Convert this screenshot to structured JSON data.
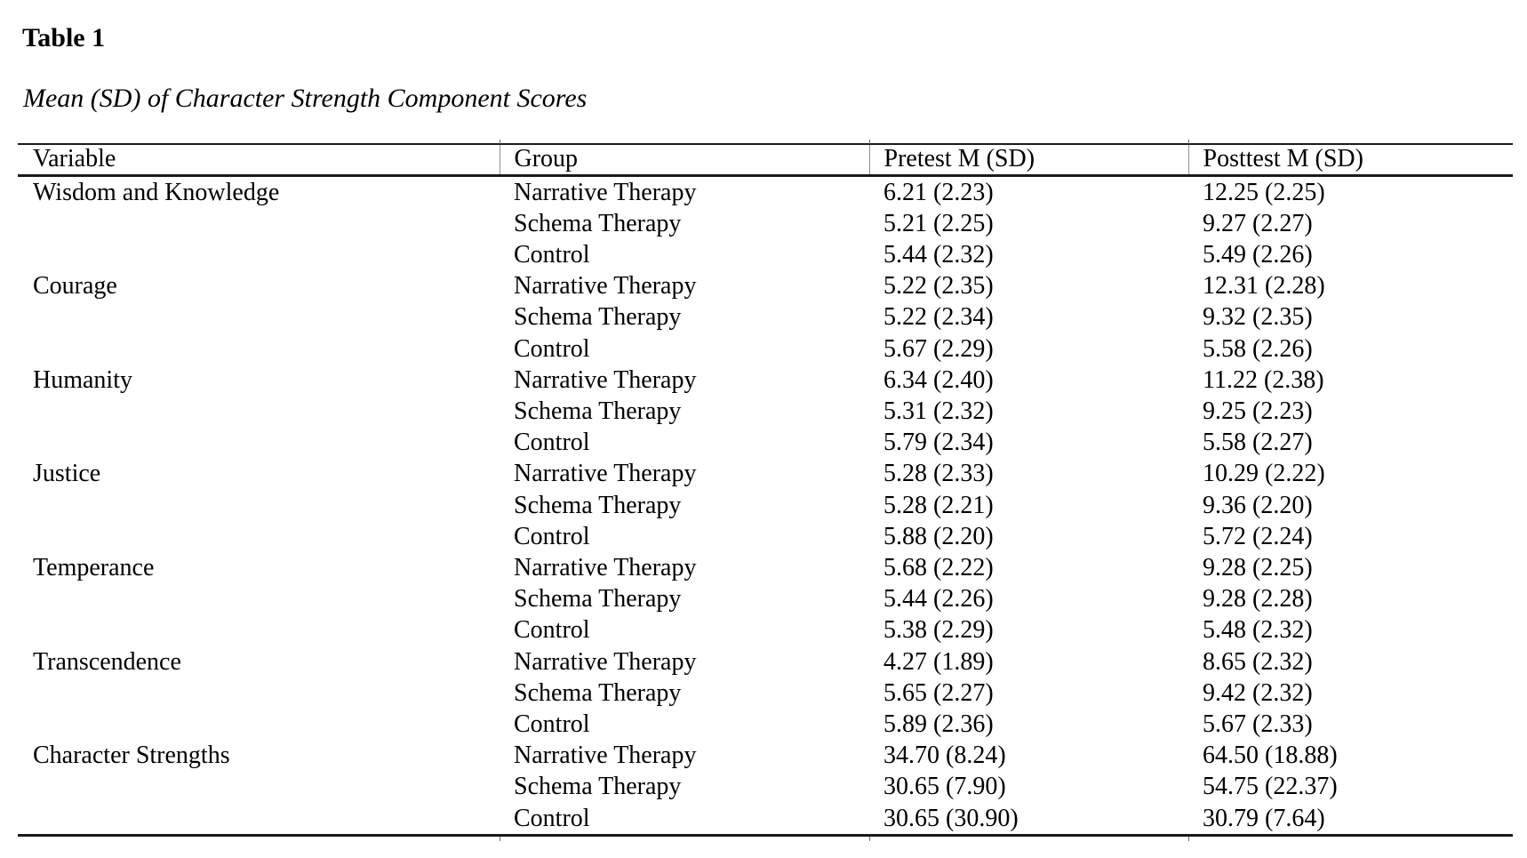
{
  "page": {
    "title": "Table 1",
    "caption": "Mean (SD) of Character Strength Component Scores"
  },
  "colors": {
    "background": "#ffffff",
    "text": "#000000",
    "rule": "#1a1a1a"
  },
  "chart_data": {
    "type": "table",
    "columns": [
      "Variable",
      "Group",
      "Pretest M (SD)",
      "Posttest M (SD)"
    ],
    "col_keys": [
      "variable",
      "group",
      "pretest",
      "posttest"
    ],
    "rows": [
      [
        "Wisdom and Knowledge",
        "Narrative Therapy",
        "6.21 (2.23)",
        "12.25 (2.25)"
      ],
      [
        "",
        "Schema Therapy",
        "5.21 (2.25)",
        "9.27 (2.27)"
      ],
      [
        "",
        "Control",
        "5.44 (2.32)",
        "5.49 (2.26)"
      ],
      [
        "Courage",
        "Narrative Therapy",
        "5.22 (2.35)",
        "12.31 (2.28)"
      ],
      [
        "",
        "Schema Therapy",
        "5.22 (2.34)",
        "9.32 (2.35)"
      ],
      [
        "",
        "Control",
        "5.67 (2.29)",
        "5.58 (2.26)"
      ],
      [
        "Humanity",
        "Narrative Therapy",
        "6.34 (2.40)",
        "11.22 (2.38)"
      ],
      [
        "",
        "Schema Therapy",
        "5.31 (2.32)",
        "9.25 (2.23)"
      ],
      [
        "",
        "Control",
        "5.79 (2.34)",
        "5.58 (2.27)"
      ],
      [
        "Justice",
        "Narrative Therapy",
        "5.28 (2.33)",
        "10.29 (2.22)"
      ],
      [
        "",
        "Schema Therapy",
        "5.28 (2.21)",
        "9.36 (2.20)"
      ],
      [
        "",
        "Control",
        "5.88 (2.20)",
        "5.72 (2.24)"
      ],
      [
        "Temperance",
        "Narrative Therapy",
        "5.68 (2.22)",
        "9.28 (2.25)"
      ],
      [
        "",
        "Schema Therapy",
        "5.44 (2.26)",
        "9.28 (2.28)"
      ],
      [
        "",
        "Control",
        "5.38 (2.29)",
        "5.48 (2.32)"
      ],
      [
        "Transcendence",
        "Narrative Therapy",
        "4.27 (1.89)",
        "8.65 (2.32)"
      ],
      [
        "",
        "Schema Therapy",
        "5.65 (2.27)",
        "9.42 (2.32)"
      ],
      [
        "",
        "Control",
        "5.89 (2.36)",
        "5.67 (2.33)"
      ],
      [
        "Character Strengths",
        "Narrative Therapy",
        "34.70 (8.24)",
        "64.50 (18.88)"
      ],
      [
        "",
        "Schema Therapy",
        "30.65 (7.90)",
        "54.75 (22.37)"
      ],
      [
        "",
        "Control",
        "30.65 (30.90)",
        "30.79 (7.64)"
      ]
    ]
  }
}
